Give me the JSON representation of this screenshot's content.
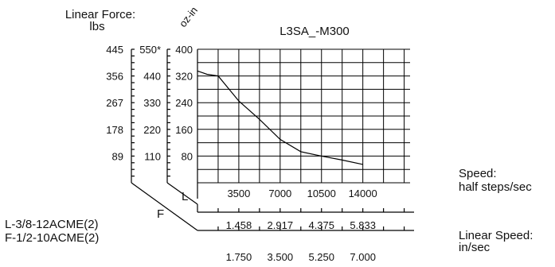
{
  "chart_data": {
    "type": "line",
    "title": "L3SA_-M300",
    "grid": true,
    "axes": {
      "left_outer": {
        "label_line1": "Linear Force:",
        "label_line2": "lbs",
        "ticks": [
          "445",
          "356",
          "267",
          "178",
          "89"
        ]
      },
      "left_middle": {
        "ticks": [
          "550*",
          "440",
          "330",
          "220",
          "110"
        ]
      },
      "left_inner": {
        "label": "oz-in",
        "ticks": [
          "400",
          "320",
          "240",
          "160",
          "80"
        ],
        "ylim": [
          0,
          400
        ]
      },
      "x_main": {
        "label_line1": "Speed:",
        "label_line2": "half steps/sec",
        "ticks": [
          "3500",
          "7000",
          "10500",
          "14000"
        ],
        "tick_values": [
          3500,
          7000,
          10500,
          14000
        ],
        "xlim": [
          0,
          18000
        ]
      },
      "x_L": {
        "axis_letter": "L",
        "ticks": [
          "1.458",
          "2.917",
          "4.375",
          "5.833"
        ]
      },
      "x_F": {
        "axis_letter": "F",
        "ticks": [
          "1.750",
          "3.500",
          "5.250",
          "7.000"
        ]
      },
      "linear_speed": {
        "label_line1": "Linear Speed:",
        "label_line2": "in/sec"
      }
    },
    "screw_legend": [
      "L-3/8-12ACME(2)",
      "F-1/2-10ACME(2)"
    ],
    "series": [
      {
        "x": [
          0,
          800,
          1750,
          3500,
          5250,
          7000,
          8750,
          10500,
          12250,
          14000
        ],
        "y": [
          335,
          325,
          320,
          245,
          190,
          130,
          93,
          80,
          68,
          55
        ]
      }
    ]
  }
}
